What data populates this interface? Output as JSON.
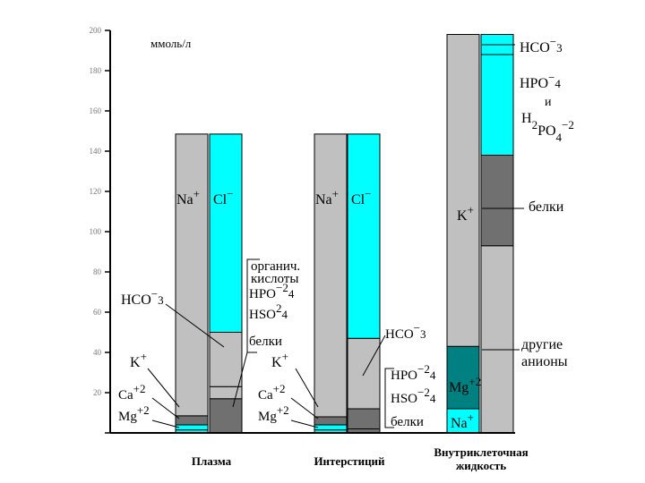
{
  "chart_data": {
    "type": "bar",
    "stacked": true,
    "title": "",
    "xlabel": "",
    "ylabel": "ммоль/л",
    "ylim": [
      0,
      200
    ],
    "yticks": [
      0,
      20,
      40,
      60,
      80,
      100,
      120,
      140,
      160,
      180,
      200
    ],
    "grid": false,
    "colors": {
      "gray": "#c0c0c0",
      "cyan": "#00ffff",
      "dark_gray": "#707070",
      "teal": "#008080",
      "axis": "#000000"
    },
    "groups": [
      {
        "name": "Плазма",
        "columns": [
          {
            "segments": [
              {
                "label": "Mg+2",
                "value": 1.5,
                "color": "cyan"
              },
              {
                "label": "Ca+2",
                "value": 2.5,
                "color": "cyan"
              },
              {
                "label": "K+",
                "value": 4.5,
                "color": "dark_gray"
              },
              {
                "label": "Na+",
                "value": 140,
                "color": "gray"
              }
            ]
          },
          {
            "segments": [
              {
                "label": "белки",
                "value": 17,
                "color": "dark_gray"
              },
              {
                "label": "органич. кислоты, HPO4-2, HSO4-2",
                "value": 6,
                "color": "gray"
              },
              {
                "label": "HCO3-",
                "value": 27,
                "color": "gray"
              },
              {
                "label": "Cl-",
                "value": 98.5,
                "color": "cyan"
              }
            ]
          }
        ]
      },
      {
        "name": "Интерстиций",
        "columns": [
          {
            "segments": [
              {
                "label": "Mg+2",
                "value": 1.5,
                "color": "cyan"
              },
              {
                "label": "Ca+2",
                "value": 2.5,
                "color": "cyan"
              },
              {
                "label": "K+",
                "value": 4,
                "color": "dark_gray"
              },
              {
                "label": "Na+",
                "value": 140.5,
                "color": "gray"
              }
            ]
          },
          {
            "segments": [
              {
                "label": "белки",
                "value": 2,
                "color": "dark_gray"
              },
              {
                "label": "HPO4-2, HSO4-2, белки",
                "value": 10,
                "color": "dark_gray"
              },
              {
                "label": "HCO3-",
                "value": 35,
                "color": "gray"
              },
              {
                "label": "Cl-",
                "value": 101.5,
                "color": "cyan"
              }
            ]
          }
        ]
      },
      {
        "name": "Внутриклеточная жидкость",
        "columns": [
          {
            "segments": [
              {
                "label": "Na+",
                "value": 12,
                "color": "cyan"
              },
              {
                "label": "Mg+2",
                "value": 31,
                "color": "teal"
              },
              {
                "label": "K+",
                "value": 155,
                "color": "gray"
              }
            ]
          },
          {
            "segments": [
              {
                "label": "другие анионы",
                "value": 93,
                "color": "gray"
              },
              {
                "label": "белки",
                "value": 45,
                "color": "dark_gray"
              },
              {
                "label": "HPO4-2 и H2PO4-2",
                "value": 50,
                "color": "cyan"
              },
              {
                "label": "HCO3-",
                "value": 10,
                "color": "cyan"
              }
            ]
          }
        ]
      }
    ],
    "labels": {
      "na_plus": "Na",
      "na_charge": "+",
      "k_plus": "K",
      "k_charge": "+",
      "ca": "Ca",
      "ca_charge": "+2",
      "mg": "Mg",
      "mg_charge": "+2",
      "cl": "Cl",
      "minus": "−",
      "hco": "HCO",
      "sub3": "3",
      "hpo": "HPO",
      "hso": "HSO",
      "sub4": "4",
      "h2": "H",
      "sub2": "2",
      "po": "PO",
      "minus2": "−2",
      "charge2": "2",
      "and": "и",
      "proteins": "белки",
      "organic1": "органич.",
      "organic2": "кислоты",
      "other1": "другие",
      "other2": "анионы",
      "cat1": "Внутриклеточная",
      "cat2": "жидкость"
    }
  }
}
